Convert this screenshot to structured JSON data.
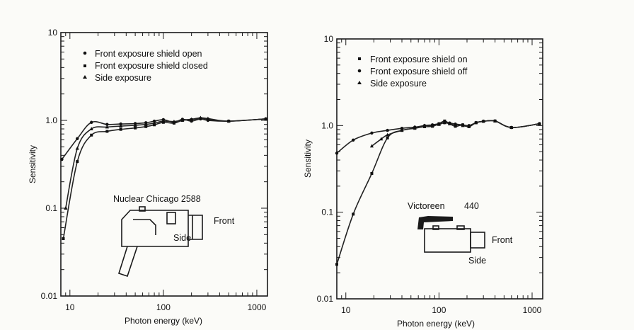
{
  "chart_data": [
    {
      "type": "line",
      "xlabel": "Photon energy (keV)",
      "ylabel": "Sensitivity",
      "xscale": "log",
      "yscale": "log",
      "xlim": [
        8,
        1300
      ],
      "ylim": [
        0.01,
        10
      ],
      "x_ticklabels": [
        "10",
        "100",
        "1000"
      ],
      "y_ticklabels": [
        "10",
        "1.0",
        "0.1",
        "0.01"
      ],
      "legend": [
        "Front exposure shield open",
        "Front exposure shield closed",
        "Side exposure"
      ],
      "legend_placement": "top-left",
      "annotations": {
        "model": "Nuclear Chicago 2588",
        "front": "Front",
        "side": "Side"
      },
      "series": [
        {
          "marker": "circle",
          "x": [
            8.2,
            12,
            17,
            25,
            35,
            50,
            65,
            80,
            100,
            130,
            160,
            200,
            250,
            300,
            500,
            1250
          ],
          "y": [
            0.36,
            0.62,
            0.95,
            0.9,
            0.91,
            0.92,
            0.94,
            0.98,
            1.02,
            0.95,
            1.03,
            0.98,
            1.04,
            1.0,
            0.98,
            1.04
          ]
        },
        {
          "marker": "square",
          "x": [
            8.5,
            12,
            17,
            25,
            35,
            50,
            65,
            80,
            100,
            130,
            160,
            200,
            250,
            300,
            500,
            1250
          ],
          "y": [
            0.045,
            0.34,
            0.68,
            0.75,
            0.79,
            0.82,
            0.85,
            0.89,
            0.95,
            0.93,
            1.0,
            1.02,
            1.05,
            1.03,
            0.98,
            1.04
          ]
        },
        {
          "marker": "triangle",
          "x": [
            9,
            12,
            17,
            25,
            35,
            50,
            65,
            80,
            100,
            130,
            160,
            200,
            250,
            300,
            500,
            1250
          ],
          "y": [
            0.1,
            0.48,
            0.8,
            0.84,
            0.86,
            0.88,
            0.9,
            0.93,
            0.98,
            0.97,
            1.01,
            1.03,
            1.07,
            1.05,
            0.98,
            1.04
          ]
        }
      ]
    },
    {
      "type": "line",
      "xlabel": "Photon energy (keV)",
      "ylabel": "Sensitivity",
      "xscale": "log",
      "yscale": "log",
      "xlim": [
        8,
        1300
      ],
      "ylim": [
        0.01,
        10
      ],
      "x_ticklabels": [
        "10",
        "100",
        "1000"
      ],
      "y_ticklabels": [
        "10",
        "1.0",
        "0.1",
        "0.01"
      ],
      "legend": [
        "Front exposure shield on",
        "Front exposure shield off",
        "Side exposure"
      ],
      "legend_placement": "top-left",
      "annotations": {
        "model": "Victoreen",
        "model_number": "440",
        "front": "Front",
        "side": "Side"
      },
      "series": [
        {
          "marker": "square",
          "x": [
            8,
            12,
            19,
            28,
            40,
            55,
            70,
            85,
            100,
            115,
            130,
            150,
            180,
            210,
            250,
            300,
            400,
            600,
            1200
          ],
          "y": [
            0.025,
            0.095,
            0.28,
            0.72,
            0.88,
            0.93,
            0.97,
            0.98,
            1.05,
            1.13,
            1.05,
            0.98,
            1.02,
            0.97,
            1.08,
            1.12,
            1.13,
            0.95,
            1.05
          ]
        },
        {
          "marker": "circle",
          "x": [
            8,
            12,
            19,
            28,
            40,
            55,
            70,
            85,
            100,
            115,
            130,
            150,
            180,
            210,
            250,
            300,
            400,
            600,
            1200
          ],
          "y": [
            0.48,
            0.68,
            0.82,
            0.88,
            0.93,
            0.96,
            1.0,
            1.02,
            1.05,
            1.08,
            1.07,
            1.04,
            1.02,
            1.0,
            1.08,
            1.12,
            1.13,
            0.95,
            1.05
          ]
        },
        {
          "marker": "triangle",
          "x": [
            19,
            24,
            28,
            40,
            55,
            70,
            85,
            100,
            115,
            130,
            150,
            180,
            210,
            250,
            300,
            400,
            600,
            1200
          ],
          "y": [
            0.58,
            0.7,
            0.78,
            0.88,
            0.94,
            1.0,
            1.0,
            1.03,
            1.08,
            1.05,
            1.03,
            1.0,
            0.98,
            1.08,
            1.12,
            1.13,
            0.95,
            1.05
          ]
        }
      ]
    }
  ]
}
